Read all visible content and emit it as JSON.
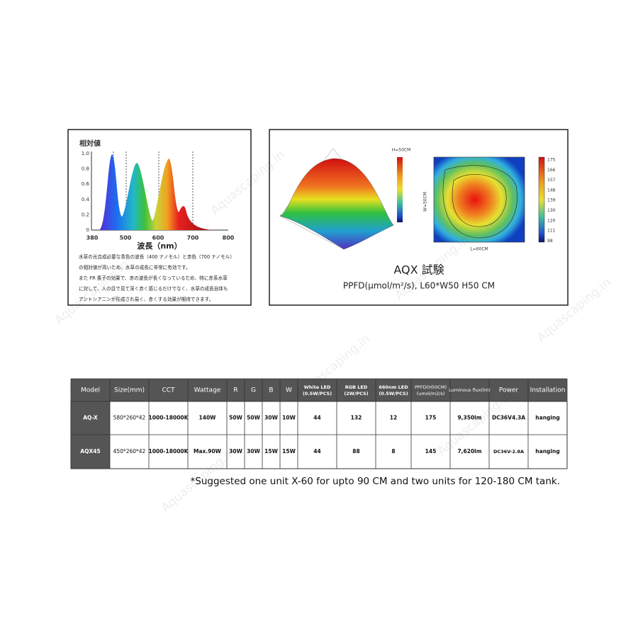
{
  "watermark": "Aquascaping.in",
  "spectrum": {
    "title": "相対値",
    "xlabel": "波長（nm）",
    "xticks": [
      "380",
      "500",
      "600",
      "700",
      "800"
    ],
    "yticks": [
      "0",
      "0.2",
      "0.4",
      "0.6",
      "0.8",
      "1.0"
    ],
    "description": [
      "水草の光合成必要な青色の波長（400 ナノモル）と赤色（700 ナノモル）",
      "の相対値が高いため、水草の成長に非常に有効です。",
      "また FR 素子の効果で、赤の波長が長くなっているため、特に赤系水草",
      "に対して、人の目で見て深く赤く感じるだけでなく、水草の成長自体も",
      "アントシアニンが形成され易く、赤くする効果が期待できます。"
    ]
  },
  "ppfd": {
    "surface_title": "H=50CM",
    "heatmap_xlabel": "L=60CM",
    "heatmap_ylabel": "W=50CM",
    "colorbar": [
      "175",
      "166",
      "157",
      "148",
      "139",
      "130",
      "120",
      "111",
      "98"
    ],
    "title": "AQX 試験",
    "subtitle": "PPFD(μmol/m²/s), L60*W50 H50 CM"
  },
  "table": {
    "header": [
      "Model",
      "Size(mm)",
      "CCT",
      "Wattage",
      "R",
      "G",
      "B",
      "W",
      "White LED (0.5W/PCS)",
      "RGB LED (2W/PCS)",
      "660nm LED (0.5W/PCS)",
      "PPFD(H50CM) (umol/m2/s)",
      "Luminous flux(lm)",
      "Power",
      "Installation"
    ],
    "rows": [
      [
        "AQ-X",
        "580*260*42",
        "1000-18000K",
        "140W",
        "50W",
        "50W",
        "30W",
        "10W",
        "44",
        "132",
        "12",
        "175",
        "9,350lm",
        "DC36V4.3A",
        "hanging"
      ],
      [
        "AQX45",
        "450*260*42",
        "1000-18000K",
        "Max.90W",
        "30W",
        "30W",
        "15W",
        "15W",
        "44",
        "88",
        "8",
        "145",
        "7,620lm",
        "DC36V-2.8A",
        "hanging"
      ]
    ]
  },
  "footnote": "*Suggested one unit X-60  for upto 90 CM and two units for 120-180 CM tank."
}
